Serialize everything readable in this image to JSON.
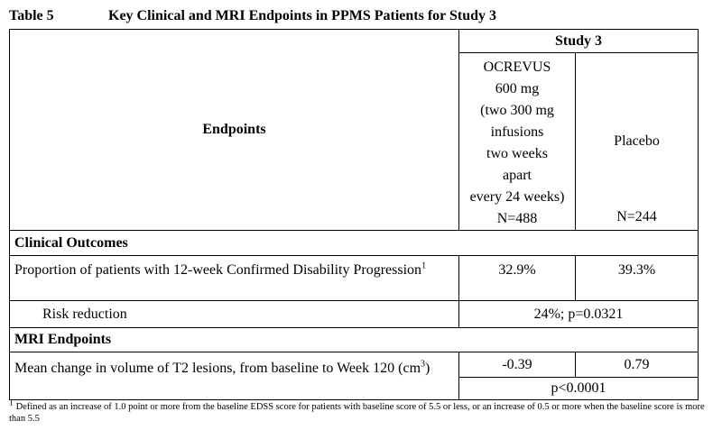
{
  "header": {
    "table_number": "Table 5",
    "title": "Key Clinical and MRI Endpoints in PPMS Patients for Study 3"
  },
  "table": {
    "endpoints_header": "Endpoints",
    "study_header": "Study 3",
    "ocrevus_header_lines": [
      "OCREVUS",
      "600 mg",
      "(two 300 mg",
      "infusions",
      "two weeks",
      "apart",
      "every 24 weeks)"
    ],
    "ocrevus_n": "N=488",
    "placebo_header": "Placebo",
    "placebo_n": "N=244",
    "sections": [
      {
        "title": "Clinical Outcomes",
        "row": {
          "label": "Proportion of patients with 12-week Confirmed Disability Progression",
          "label_sup": "1",
          "ocrevus": "32.9%",
          "placebo": "39.3%"
        },
        "sub_label": "Risk reduction",
        "sub_value": "24%; p=0.0321"
      },
      {
        "title": "MRI Endpoints",
        "row": {
          "label": "Mean change in volume of T2 lesions, from baseline to Week 120 (cm",
          "label_sup": "3",
          "label_end": ")",
          "ocrevus": "-0.39",
          "placebo": "0.79"
        },
        "sub_value": "p<0.0001"
      }
    ]
  },
  "footnote": {
    "marker": "1",
    "text": "Defined as an increase of 1.0 point or more from the baseline EDSS score for patients with baseline score of 5.5 or less, or an increase of 0.5 or more when the baseline score is more than 5.5"
  }
}
